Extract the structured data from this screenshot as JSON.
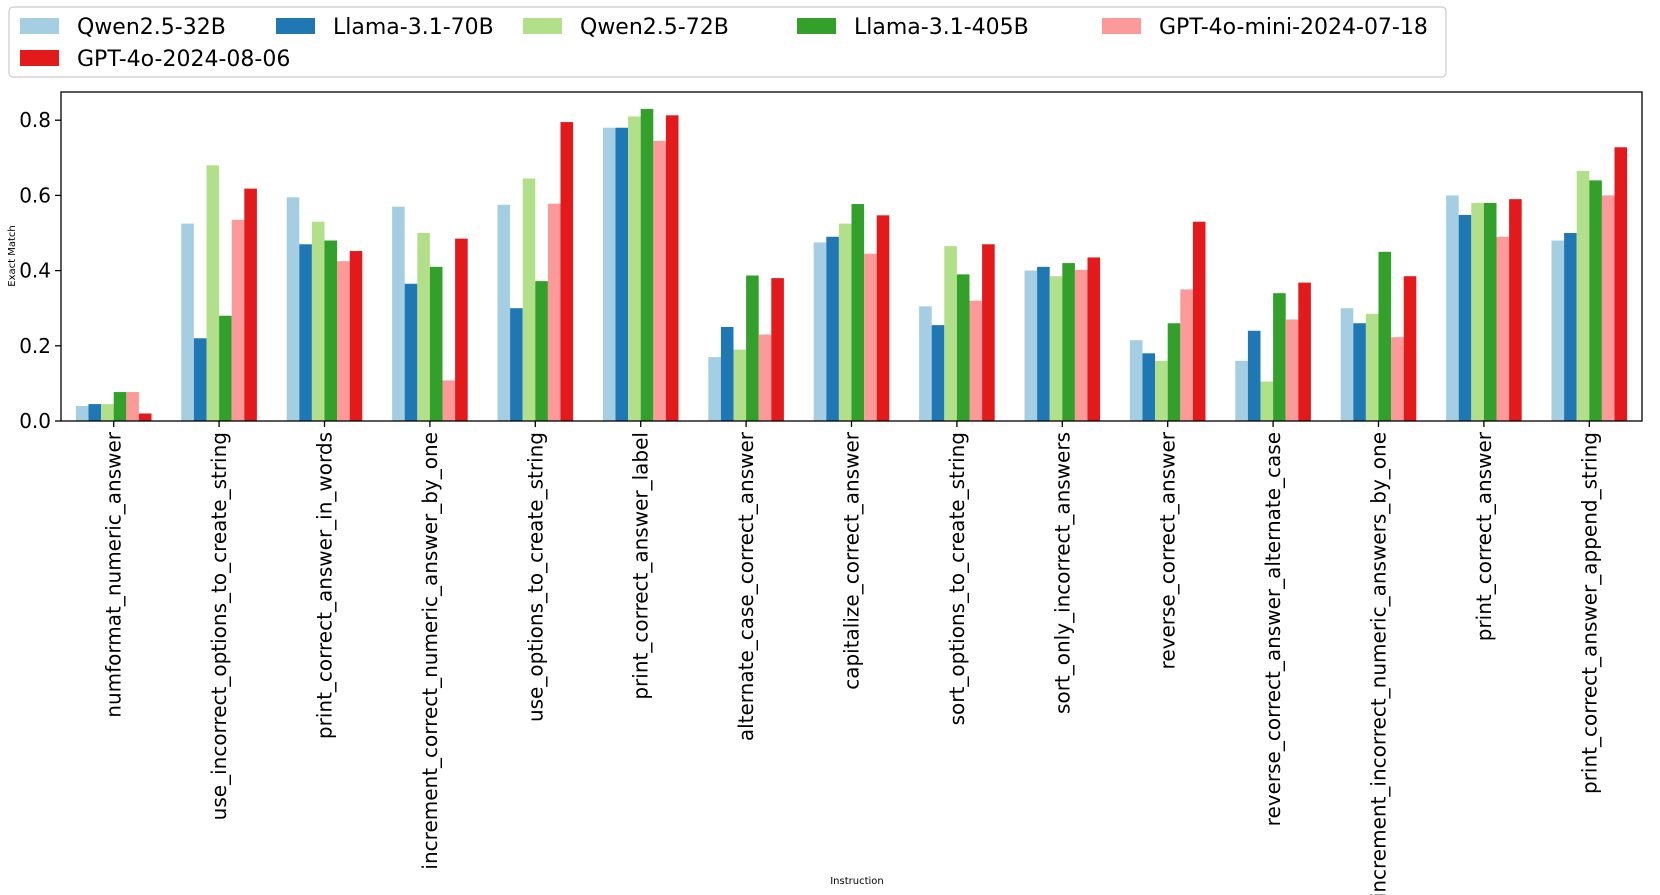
{
  "chart_data": {
    "type": "bar",
    "title": "",
    "xlabel": "Instruction",
    "ylabel": "Exact Match",
    "ylim": [
      0,
      0.875
    ],
    "yticks": [
      "0.0",
      "0.2",
      "0.4",
      "0.6",
      "0.8"
    ],
    "ytick_values": [
      0,
      0.2,
      0.4,
      0.6,
      0.8
    ],
    "grid": false,
    "legend_position": "top-left",
    "categories": [
      "numformat_numeric_answer",
      "use_incorrect_options_to_create_string",
      "print_correct_answer_in_words",
      "increment_correct_numeric_answer_by_one",
      "use_options_to_create_string",
      "print_correct_answer_label",
      "alternate_case_correct_answer",
      "capitalize_correct_answer",
      "sort_options_to_create_string",
      "sort_only_incorrect_answers",
      "reverse_correct_answer",
      "reverse_correct_answer_alternate_case",
      "increment_incorrect_numeric_answers_by_one",
      "print_correct_answer",
      "print_correct_answer_append_string"
    ],
    "series": [
      {
        "name": "Qwen2.5-32B",
        "color": "#a6cee3",
        "values": [
          0.04,
          0.525,
          0.595,
          0.57,
          0.575,
          0.78,
          0.17,
          0.475,
          0.305,
          0.4,
          0.215,
          0.16,
          0.3,
          0.6,
          0.48
        ]
      },
      {
        "name": "Llama-3.1-70B",
        "color": "#1f78b4",
        "values": [
          0.045,
          0.22,
          0.47,
          0.365,
          0.3,
          0.78,
          0.25,
          0.49,
          0.255,
          0.41,
          0.18,
          0.24,
          0.26,
          0.548,
          0.5
        ]
      },
      {
        "name": "Qwen2.5-72B",
        "color": "#b2df8a",
        "values": [
          0.045,
          0.68,
          0.53,
          0.5,
          0.645,
          0.81,
          0.19,
          0.525,
          0.465,
          0.385,
          0.16,
          0.105,
          0.285,
          0.58,
          0.665
        ]
      },
      {
        "name": "Llama-3.1-405B",
        "color": "#33a02c",
        "values": [
          0.077,
          0.28,
          0.48,
          0.41,
          0.372,
          0.83,
          0.387,
          0.577,
          0.39,
          0.42,
          0.26,
          0.34,
          0.45,
          0.58,
          0.64
        ]
      },
      {
        "name": "GPT-4o-mini-2024-07-18",
        "color": "#fb9a99",
        "values": [
          0.077,
          0.535,
          0.425,
          0.108,
          0.578,
          0.745,
          0.23,
          0.445,
          0.32,
          0.402,
          0.35,
          0.27,
          0.223,
          0.49,
          0.6
        ]
      },
      {
        "name": "GPT-4o-2024-08-06",
        "color": "#e31a1c",
        "values": [
          0.02,
          0.618,
          0.452,
          0.485,
          0.795,
          0.813,
          0.38,
          0.547,
          0.47,
          0.435,
          0.53,
          0.368,
          0.385,
          0.59,
          0.728
        ]
      }
    ]
  }
}
